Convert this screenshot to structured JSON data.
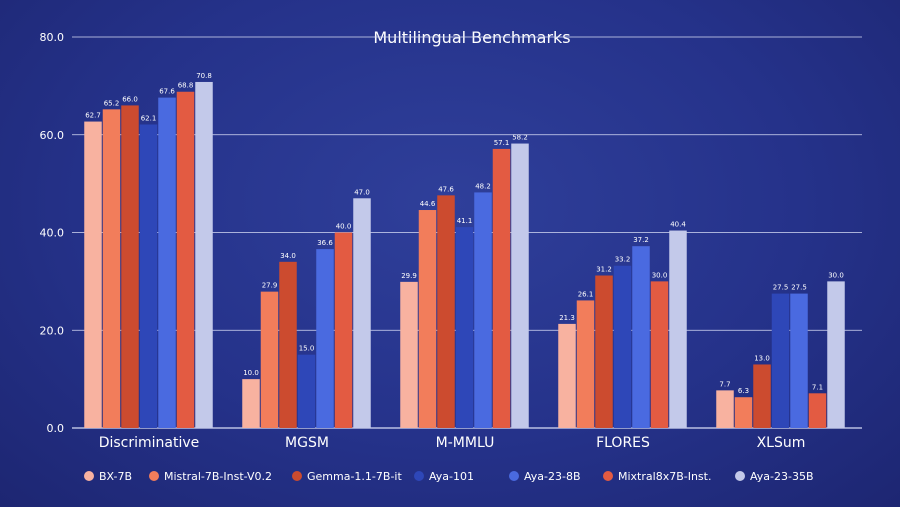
{
  "chart_data": {
    "type": "bar",
    "title": "Multilingual Benchmarks",
    "xlabel": "",
    "ylabel": "",
    "ylim": [
      0,
      80
    ],
    "yticks": [
      "0.0",
      "20.0",
      "40.0",
      "60.0",
      "80.0"
    ],
    "grid": true,
    "legend_position": "bottom",
    "categories": [
      "Discriminative",
      "MGSM",
      "M-MMLU",
      "FLORES",
      "XLSum"
    ],
    "series": [
      {
        "name": "BX-7B",
        "color": "#f8b2a0",
        "values": [
          62.7,
          10.0,
          29.9,
          21.3,
          7.7
        ]
      },
      {
        "name": "Mistral-7B-Inst-V0.2",
        "color": "#f27d5b",
        "values": [
          65.2,
          27.9,
          44.6,
          26.1,
          6.3
        ]
      },
      {
        "name": "Gemma-1.1-7B-it",
        "color": "#cc4b2f",
        "values": [
          66.0,
          34.0,
          47.6,
          31.2,
          13.0
        ]
      },
      {
        "name": "Aya-101",
        "color": "#2e47b8",
        "values": [
          62.1,
          15.0,
          41.1,
          33.2,
          27.5
        ]
      },
      {
        "name": "Aya-23-8B",
        "color": "#4a6ae0",
        "values": [
          67.6,
          36.6,
          48.2,
          37.2,
          27.5
        ]
      },
      {
        "name": "Mixtral8x7B-Inst.",
        "color": "#e35b42",
        "values": [
          68.8,
          40.0,
          57.1,
          30.0,
          7.1
        ]
      },
      {
        "name": "Aya-23-35B",
        "color": "#c3c9ea",
        "values": [
          70.8,
          47.0,
          58.2,
          40.4,
          30.0
        ]
      }
    ]
  }
}
